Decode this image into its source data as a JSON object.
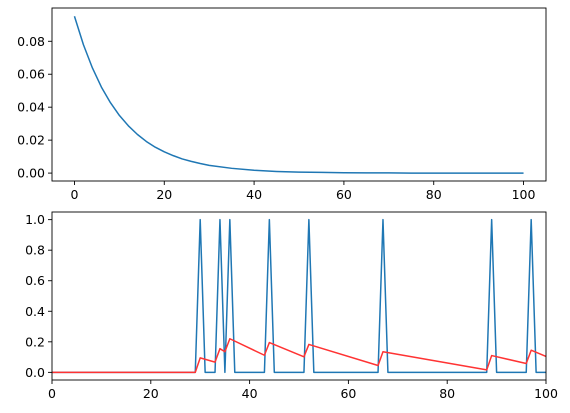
{
  "chart_data": [
    {
      "type": "line",
      "title": "",
      "xlabel": "",
      "ylabel": "",
      "xlim": [
        -5,
        105
      ],
      "ylim": [
        -0.0048,
        0.1002
      ],
      "xticks": [
        0,
        20,
        40,
        60,
        80,
        100
      ],
      "xtick_labels": [
        "0",
        "20",
        "40",
        "60",
        "80",
        "100"
      ],
      "yticks": [
        0.0,
        0.02,
        0.04,
        0.06,
        0.08
      ],
      "ytick_labels": [
        "0.00",
        "0.02",
        "0.04",
        "0.06",
        "0.08"
      ],
      "grid": false,
      "legend": "none",
      "series": [
        {
          "color": "#1f77b4",
          "x": [
            0,
            2,
            4,
            6,
            8,
            10,
            12,
            14,
            16,
            18,
            20,
            22,
            24,
            26,
            28,
            30,
            35,
            40,
            45,
            50,
            55,
            60,
            65,
            70,
            75,
            80,
            85,
            90,
            95,
            100
          ],
          "y": [
            0.0952,
            0.0779,
            0.0638,
            0.0522,
            0.0428,
            0.035,
            0.0287,
            0.0235,
            0.0192,
            0.0157,
            0.0129,
            0.0106,
            0.0086,
            0.0071,
            0.0058,
            0.0047,
            0.0029,
            0.0017,
            0.001,
            0.0006,
            0.0004,
            0.0002,
            0.0001,
            0.0001,
            0.0,
            0.0,
            0.0,
            0.0,
            0.0,
            0.0
          ]
        }
      ]
    },
    {
      "type": "line",
      "title": "",
      "xlabel": "",
      "ylabel": "",
      "xlim": [
        0,
        100
      ],
      "ylim": [
        -0.05,
        1.05
      ],
      "xticks": [
        0,
        20,
        40,
        60,
        80,
        100
      ],
      "xtick_labels": [
        "0",
        "20",
        "40",
        "60",
        "80",
        "100"
      ],
      "yticks": [
        0.0,
        0.2,
        0.4,
        0.6,
        0.8,
        1.0
      ],
      "ytick_labels": [
        "0.0",
        "0.2",
        "0.4",
        "0.6",
        "0.8",
        "1.0"
      ],
      "grid": false,
      "legend": "none",
      "series": [
        {
          "color": "#1f77b4",
          "x": [
            0,
            29,
            30,
            31,
            33,
            34,
            35,
            36,
            37,
            43,
            44,
            45,
            51,
            52,
            53,
            66,
            67,
            68,
            88,
            89,
            90,
            96,
            97,
            98,
            100
          ],
          "y": [
            0,
            0,
            1,
            0,
            0,
            1,
            0,
            1,
            0,
            0,
            1,
            0,
            0,
            1,
            0,
            0,
            1,
            0,
            0,
            1,
            0,
            0,
            1,
            0,
            0
          ]
        },
        {
          "color": "#ff3333",
          "x": [
            0,
            29,
            30,
            33,
            34,
            35,
            36,
            43,
            44,
            51,
            52,
            66,
            67,
            88,
            89,
            96,
            97,
            100
          ],
          "y": [
            0,
            0,
            0.095,
            0.067,
            0.155,
            0.135,
            0.22,
            0.112,
            0.195,
            0.102,
            0.183,
            0.045,
            0.135,
            0.016,
            0.11,
            0.058,
            0.145,
            0.104
          ]
        }
      ]
    }
  ]
}
